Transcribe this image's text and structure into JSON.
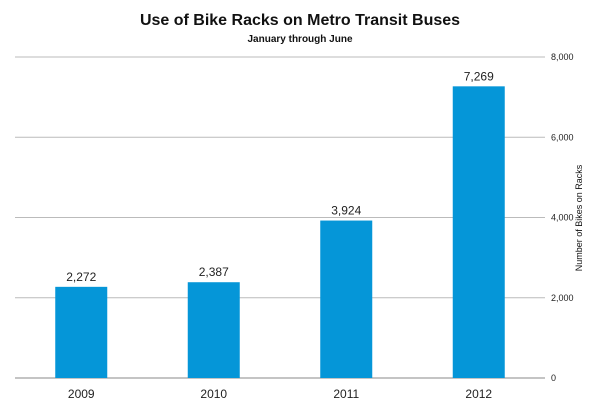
{
  "chart_data": {
    "type": "bar",
    "title": "Use of Bike Racks on Metro Transit Buses",
    "subtitle": "January through June",
    "categories": [
      "2009",
      "2010",
      "2011",
      "2012"
    ],
    "values": [
      2272,
      2387,
      3924,
      7269
    ],
    "data_labels": [
      "2,272",
      "2,387",
      "3,924",
      "7,269"
    ],
    "ylabel": "Number of Bikes on Racks",
    "ylim": [
      0,
      8000
    ],
    "yticks": [
      0,
      2000,
      4000,
      6000,
      8000
    ],
    "ytick_labels": [
      "0",
      "2,000",
      "4,000",
      "6,000",
      "8,000"
    ],
    "y_axis_position": "right",
    "grid": true,
    "bar_color": "#0596d8",
    "grid_color": "#bbbbbb"
  }
}
